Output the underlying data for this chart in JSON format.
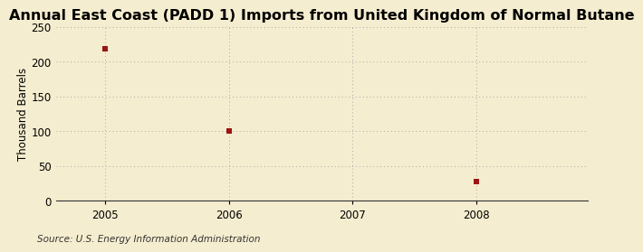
{
  "title": "Annual East Coast (PADD 1) Imports from United Kingdom of Normal Butane",
  "ylabel": "Thousand Barrels",
  "source": "Source: U.S. Energy Information Administration",
  "background_color": "#f5edcf",
  "plot_background_color": "#f5edcf",
  "data_x": [
    2005,
    2006,
    2008
  ],
  "data_y": [
    218,
    100,
    28
  ],
  "marker_color": "#9b1515",
  "marker_size": 5,
  "xlim": [
    2004.6,
    2008.9
  ],
  "ylim": [
    0,
    250
  ],
  "yticks": [
    0,
    50,
    100,
    150,
    200,
    250
  ],
  "xticks": [
    2005,
    2006,
    2007,
    2008
  ],
  "grid_color": "#aaaaaa",
  "title_fontsize": 11.5,
  "axis_fontsize": 8.5,
  "source_fontsize": 7.5
}
